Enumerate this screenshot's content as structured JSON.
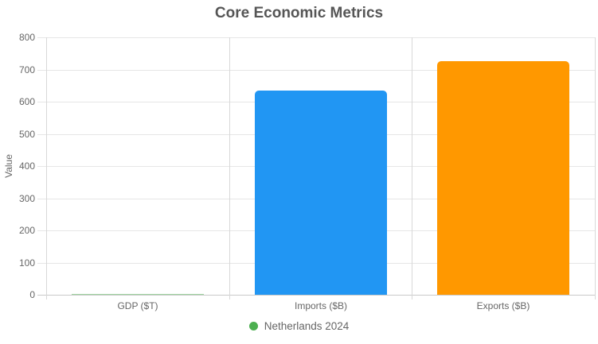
{
  "chart_data": {
    "type": "bar",
    "title": "Core Economic Metrics",
    "categories": [
      "GDP ($T)",
      "Imports ($B)",
      "Exports ($B)"
    ],
    "series": [
      {
        "name": "Netherlands 2024",
        "values": [
          1.2,
          635,
          725
        ]
      }
    ],
    "bar_colors": [
      "#4caf50",
      "#2196f3",
      "#ff9800"
    ],
    "xlabel": "",
    "ylabel": "Value",
    "ylim": [
      0,
      800
    ],
    "yticks": [
      0,
      100,
      200,
      300,
      400,
      500,
      600,
      700,
      800
    ],
    "grid": true,
    "legend_position": "bottom",
    "legend_marker_color": "#4caf50",
    "colors": {
      "title_text": "#565656",
      "axis_text": "#666666",
      "gridline": "#e6e6e6",
      "axis_line": "#d8d8d8",
      "zero_line": "#c9c9c9"
    }
  }
}
